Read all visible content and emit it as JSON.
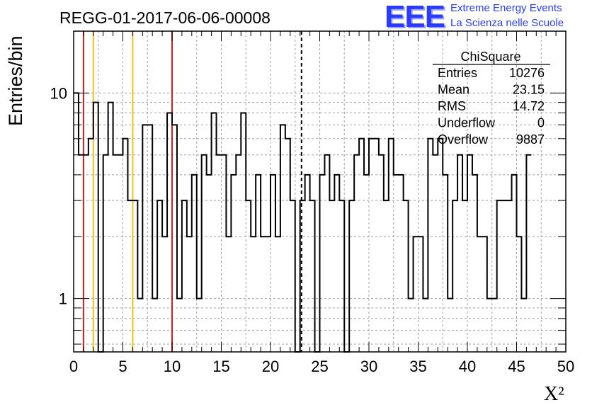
{
  "header": {
    "title": "REGG-01-2017-06-06-00008",
    "logo_text": "EEE",
    "logo_line1": "Extreme Energy Events",
    "logo_line2": "La Scienza nelle Scuole",
    "logo_color": "#2b3cff"
  },
  "stats": {
    "name": "ChiSquare",
    "rows": [
      {
        "label": "Entries",
        "value": "10276"
      },
      {
        "label": "Mean",
        "value": "23.15"
      },
      {
        "label": "RMS",
        "value": "14.72"
      },
      {
        "label": "Underflow",
        "value": "0"
      },
      {
        "label": "Overflow",
        "value": "9887"
      }
    ]
  },
  "chart_data": {
    "type": "histogram",
    "xlabel": "X²",
    "ylabel": "Entries/bin",
    "xlim": [
      0,
      50
    ],
    "ylim": [
      0.55,
      20
    ],
    "yscale": "log",
    "grid": true,
    "x_ticks": [
      "0",
      "5",
      "10",
      "15",
      "20",
      "25",
      "30",
      "35",
      "40",
      "45",
      "50"
    ],
    "y_ticks": [
      {
        "value": 1,
        "label": "1"
      },
      {
        "value": 10,
        "label": "10"
      }
    ],
    "bin_width": 0.5,
    "bin_start": 0,
    "counts": [
      10,
      5,
      5,
      6,
      9,
      0,
      5,
      9,
      5,
      5,
      6,
      3,
      3,
      1,
      7,
      7,
      1,
      3,
      2,
      8,
      7,
      1,
      3,
      2,
      4,
      1,
      5,
      4,
      8,
      5,
      5,
      2,
      4,
      5,
      8,
      3,
      2,
      4,
      2,
      2,
      4,
      2,
      7,
      6,
      3,
      0,
      3,
      4,
      3,
      0,
      4,
      5,
      3,
      4,
      3,
      0,
      3,
      5,
      6,
      4,
      6,
      6,
      5,
      3,
      6,
      4,
      4,
      3,
      1,
      2,
      2,
      1,
      6,
      5,
      6,
      4,
      1,
      3,
      5,
      3,
      5,
      4,
      2,
      2,
      1,
      1,
      3,
      3,
      3,
      4,
      2,
      1,
      5
    ],
    "vertical_lines": [
      {
        "x": 1,
        "color": "#cc2020",
        "style": "solid"
      },
      {
        "x": 2,
        "color": "#f0c020",
        "style": "solid"
      },
      {
        "x": 6,
        "color": "#f0c020",
        "style": "solid"
      },
      {
        "x": 10,
        "color": "#cc2020",
        "style": "solid"
      },
      {
        "x": 23.15,
        "color": "#000000",
        "style": "dashed"
      }
    ],
    "line_color": "#000000",
    "grid_color": "#a0a0a0"
  }
}
